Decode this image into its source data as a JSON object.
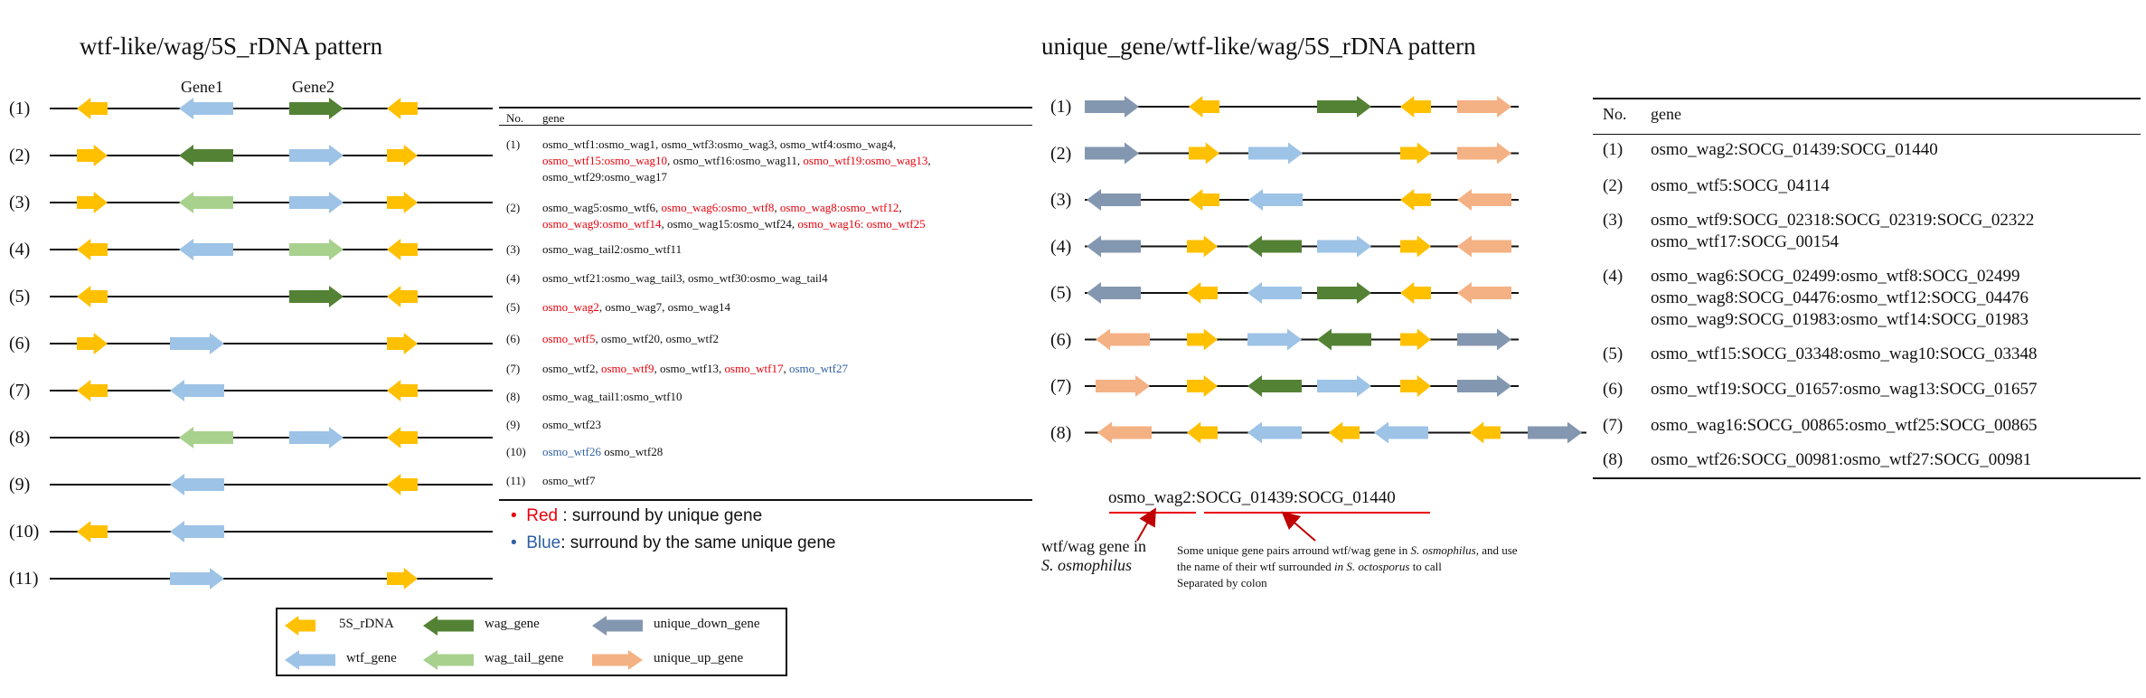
{
  "colors": {
    "rDNA": "#ffc000",
    "wag": "#548235",
    "wtf": "#9dc3e6",
    "wag_tail": "#a9d18e",
    "unique_down": "#8497b0",
    "unique_up": "#f4b183"
  },
  "left": {
    "title": "wtf-like/wag/5S_rDNA pattern",
    "gene1_label": "Gene1",
    "gene2_label": "Gene2",
    "rows": [
      {
        "label": "(1)",
        "arrows": [
          {
            "t": "rDNA",
            "d": "L"
          },
          {
            "t": "wtf",
            "d": "L"
          },
          {
            "t": "wag",
            "d": "R"
          },
          {
            "t": "rDNA",
            "d": "L"
          }
        ]
      },
      {
        "label": "(2)",
        "arrows": [
          {
            "t": "rDNA",
            "d": "R"
          },
          {
            "t": "wag",
            "d": "L"
          },
          {
            "t": "wtf",
            "d": "R"
          },
          {
            "t": "rDNA",
            "d": "R"
          }
        ]
      },
      {
        "label": "(3)",
        "arrows": [
          {
            "t": "rDNA",
            "d": "R"
          },
          {
            "t": "wag_tail",
            "d": "L"
          },
          {
            "t": "wtf",
            "d": "R"
          },
          {
            "t": "rDNA",
            "d": "R"
          }
        ]
      },
      {
        "label": "(4)",
        "arrows": [
          {
            "t": "rDNA",
            "d": "L"
          },
          {
            "t": "wtf",
            "d": "L"
          },
          {
            "t": "wag_tail",
            "d": "R"
          },
          {
            "t": "rDNA",
            "d": "L"
          }
        ]
      },
      {
        "label": "(5)",
        "arrows": [
          {
            "t": "rDNA",
            "d": "L"
          },
          {
            "t": "wag",
            "d": "R"
          },
          {
            "t": "rDNA",
            "d": "L"
          }
        ]
      },
      {
        "label": "(6)",
        "arrows": [
          {
            "t": "rDNA",
            "d": "R"
          },
          {
            "t": "wtf",
            "d": "R"
          },
          {
            "t": "rDNA",
            "d": "R"
          }
        ]
      },
      {
        "label": "(7)",
        "arrows": [
          {
            "t": "rDNA",
            "d": "L"
          },
          {
            "t": "wtf",
            "d": "L"
          },
          {
            "t": "rDNA",
            "d": "L"
          }
        ]
      },
      {
        "label": "(8)",
        "arrows": [
          {
            "t": "wag_tail",
            "d": "L"
          },
          {
            "t": "wtf",
            "d": "R"
          },
          {
            "t": "rDNA",
            "d": "L"
          }
        ]
      },
      {
        "label": "(9)",
        "arrows": [
          {
            "t": "wtf",
            "d": "L"
          },
          {
            "t": "rDNA",
            "d": "L"
          }
        ]
      },
      {
        "label": "(10)",
        "arrows": [
          {
            "t": "rDNA",
            "d": "L"
          },
          {
            "t": "wtf",
            "d": "L"
          }
        ]
      },
      {
        "label": "(11)",
        "arrows": [
          {
            "t": "wtf",
            "d": "R"
          },
          {
            "t": "rDNA",
            "d": "R"
          }
        ]
      }
    ]
  },
  "table1": {
    "headers": [
      "No.",
      "gene"
    ],
    "rows": [
      {
        "no": "(1)",
        "lines": [
          [
            {
              "t": "osmo_wtf1:osmo_wag1,  osmo_wtf3:osmo_wag3,  osmo_wtf4:osmo_wag4,",
              "c": ""
            }
          ],
          [
            {
              "t": "osmo_wtf15:osmo_wag10",
              "c": "red"
            },
            {
              "t": ",  osmo_wtf16:osmo_wag11,  ",
              "c": ""
            },
            {
              "t": "osmo_wtf19:osmo_wag13",
              "c": "red"
            },
            {
              "t": ",",
              "c": ""
            }
          ],
          [
            {
              "t": "osmo_wtf29:osmo_wag17",
              "c": ""
            }
          ]
        ]
      },
      {
        "no": "(2)",
        "lines": [
          [
            {
              "t": "osmo_wag5:osmo_wtf6,  ",
              "c": ""
            },
            {
              "t": "osmo_wag6:osmo_wtf8",
              "c": "red"
            },
            {
              "t": ",  ",
              "c": ""
            },
            {
              "t": "osmo_wag8:osmo_wtf12",
              "c": "red"
            },
            {
              "t": ",",
              "c": ""
            }
          ],
          [
            {
              "t": "osmo_wag9:osmo_wtf14",
              "c": "red"
            },
            {
              "t": ",  osmo_wag15:osmo_wtf24,  ",
              "c": ""
            },
            {
              "t": "osmo_wag16: osmo_wtf25",
              "c": "red"
            }
          ]
        ]
      },
      {
        "no": "(3)",
        "lines": [
          [
            {
              "t": "osmo_wag_tail2:osmo_wtf11",
              "c": ""
            }
          ]
        ]
      },
      {
        "no": "(4)",
        "lines": [
          [
            {
              "t": "osmo_wtf21:osmo_wag_tail3,  osmo_wtf30:osmo_wag_tail4",
              "c": ""
            }
          ]
        ]
      },
      {
        "no": "(5)",
        "lines": [
          [
            {
              "t": "osmo_wag2",
              "c": "red"
            },
            {
              "t": ",  osmo_wag7,  osmo_wag14",
              "c": ""
            }
          ]
        ]
      },
      {
        "no": "(6)",
        "lines": [
          [
            {
              "t": "osmo_wtf5",
              "c": "red"
            },
            {
              "t": ",  osmo_wtf20,  osmo_wtf2",
              "c": ""
            }
          ]
        ]
      },
      {
        "no": "(7)",
        "lines": [
          [
            {
              "t": "osmo_wtf2,  ",
              "c": ""
            },
            {
              "t": "osmo_wtf9",
              "c": "red"
            },
            {
              "t": ",  osmo_wtf13,  ",
              "c": ""
            },
            {
              "t": "osmo_wtf17",
              "c": "red"
            },
            {
              "t": ",  ",
              "c": ""
            },
            {
              "t": "osmo_wtf27",
              "c": "blue"
            }
          ]
        ]
      },
      {
        "no": "(8)",
        "lines": [
          [
            {
              "t": "osmo_wag_tail1:osmo_wtf10",
              "c": ""
            }
          ]
        ]
      },
      {
        "no": "(9)",
        "lines": [
          [
            {
              "t": "osmo_wtf23",
              "c": ""
            }
          ]
        ]
      },
      {
        "no": "(10)",
        "lines": [
          [
            {
              "t": "osmo_wtf26",
              "c": "blue"
            },
            {
              "t": "  osmo_wtf28",
              "c": ""
            }
          ]
        ]
      },
      {
        "no": "(11)",
        "lines": [
          [
            {
              "t": "osmo_wtf7",
              "c": ""
            }
          ]
        ]
      }
    ]
  },
  "color_key": [
    {
      "bullet": "•",
      "word": "Red",
      "rest": " : surround by unique gene",
      "c": "red"
    },
    {
      "bullet": "•",
      "word": "Blue",
      "rest": ": surround by the same unique gene",
      "c": "blue"
    }
  ],
  "legend": [
    {
      "t": "rDNA",
      "d": "L",
      "label": "5S_rDNA"
    },
    {
      "t": "wag",
      "d": "L",
      "label": "wag_gene"
    },
    {
      "t": "unique_down",
      "d": "L",
      "label": "unique_down_gene"
    },
    {
      "t": "wtf",
      "d": "L",
      "label": "wtf_gene"
    },
    {
      "t": "wag_tail",
      "d": "L",
      "label": "wag_tail_gene"
    },
    {
      "t": "unique_up",
      "d": "R",
      "label": "unique_up_gene"
    }
  ],
  "right": {
    "title": "unique_gene/wtf-like/wag/5S_rDNA pattern",
    "rows": [
      {
        "label": "(1)",
        "arrows": [
          {
            "t": "unique_down",
            "d": "R"
          },
          {
            "t": "rDNA",
            "d": "L"
          },
          {
            "t": "wag",
            "d": "R"
          },
          {
            "t": "rDNA",
            "d": "L"
          },
          {
            "t": "unique_up",
            "d": "R"
          }
        ]
      },
      {
        "label": "(2)",
        "arrows": [
          {
            "t": "unique_down",
            "d": "R"
          },
          {
            "t": "rDNA",
            "d": "R"
          },
          {
            "t": "wtf",
            "d": "R"
          },
          {
            "t": "rDNA",
            "d": "R"
          },
          {
            "t": "unique_up",
            "d": "R"
          }
        ]
      },
      {
        "label": "(3)",
        "arrows": [
          {
            "t": "unique_down",
            "d": "L"
          },
          {
            "t": "rDNA",
            "d": "L"
          },
          {
            "t": "wtf",
            "d": "L"
          },
          {
            "t": "rDNA",
            "d": "L"
          },
          {
            "t": "unique_up",
            "d": "L"
          }
        ]
      },
      {
        "label": "(4)",
        "arrows": [
          {
            "t": "unique_down",
            "d": "L"
          },
          {
            "t": "rDNA",
            "d": "R"
          },
          {
            "t": "wag",
            "d": "L"
          },
          {
            "t": "wtf",
            "d": "R"
          },
          {
            "t": "rDNA",
            "d": "R"
          },
          {
            "t": "unique_up",
            "d": "L"
          }
        ]
      },
      {
        "label": "(5)",
        "arrows": [
          {
            "t": "unique_down",
            "d": "L"
          },
          {
            "t": "rDNA",
            "d": "L"
          },
          {
            "t": "wtf",
            "d": "L"
          },
          {
            "t": "wag",
            "d": "R"
          },
          {
            "t": "rDNA",
            "d": "L"
          },
          {
            "t": "unique_up",
            "d": "L"
          }
        ]
      },
      {
        "label": "(6)",
        "arrows": [
          {
            "t": "unique_up",
            "d": "L"
          },
          {
            "t": "rDNA",
            "d": "R"
          },
          {
            "t": "wtf",
            "d": "R"
          },
          {
            "t": "wag",
            "d": "L"
          },
          {
            "t": "rDNA",
            "d": "R"
          },
          {
            "t": "unique_down",
            "d": "R"
          }
        ]
      },
      {
        "label": "(7)",
        "arrows": [
          {
            "t": "unique_up",
            "d": "R"
          },
          {
            "t": "rDNA",
            "d": "R"
          },
          {
            "t": "wag",
            "d": "L"
          },
          {
            "t": "wtf",
            "d": "R"
          },
          {
            "t": "rDNA",
            "d": "R"
          },
          {
            "t": "unique_down",
            "d": "R"
          }
        ]
      },
      {
        "label": "(8)",
        "arrows": [
          {
            "t": "unique_up",
            "d": "L"
          },
          {
            "t": "rDNA",
            "d": "L"
          },
          {
            "t": "wtf",
            "d": "L"
          },
          {
            "t": "rDNA",
            "d": "L"
          },
          {
            "t": "wtf",
            "d": "L"
          },
          {
            "t": "rDNA",
            "d": "L"
          },
          {
            "t": "unique_down",
            "d": "R"
          }
        ]
      }
    ]
  },
  "example": {
    "main_part1": "osmo_wag2",
    "main_part2": ":SOCG_01439:SOCG_01440",
    "note_left_1": "wtf/wag gene in",
    "note_left_2": "S. osmophilus",
    "note_right_1a": "Some unique  gene pairs arround wtf/wag  gene in ",
    "note_right_1b": "S. osmophilus,",
    "note_right_1c": " and use",
    "note_right_2a": "the name of their  wtf  surrounded  ",
    "note_right_2b": "in S. octosporus",
    "note_right_2c": " to call",
    "note_right_3": "Separated by colon"
  },
  "table2": {
    "headers": [
      "No.",
      "gene"
    ],
    "rows": [
      {
        "no": "(1)",
        "lines": [
          "osmo_wag2:SOCG_01439:SOCG_01440"
        ]
      },
      {
        "no": "(2)",
        "lines": [
          "osmo_wtf5:SOCG_04114"
        ]
      },
      {
        "no": "(3)",
        "lines": [
          "osmo_wtf9:SOCG_02318:SOCG_02319:SOCG_02322",
          "osmo_wtf17:SOCG_00154"
        ]
      },
      {
        "no": "(4)",
        "lines": [
          "osmo_wag6:SOCG_02499:osmo_wtf8:SOCG_02499",
          "osmo_wag8:SOCG_04476:osmo_wtf12:SOCG_04476",
          "osmo_wag9:SOCG_01983:osmo_wtf14:SOCG_01983"
        ]
      },
      {
        "no": "(5)",
        "lines": [
          "osmo_wtf15:SOCG_03348:osmo_wag10:SOCG_03348"
        ]
      },
      {
        "no": "(6)",
        "lines": [
          "osmo_wtf19:SOCG_01657:osmo_wag13:SOCG_01657"
        ]
      },
      {
        "no": "(7)",
        "lines": [
          "osmo_wag16:SOCG_00865:osmo_wtf25:SOCG_00865"
        ]
      },
      {
        "no": "(8)",
        "lines": [
          "osmo_wtf26:SOCG_00981:osmo_wtf27:SOCG_00981"
        ]
      }
    ]
  }
}
